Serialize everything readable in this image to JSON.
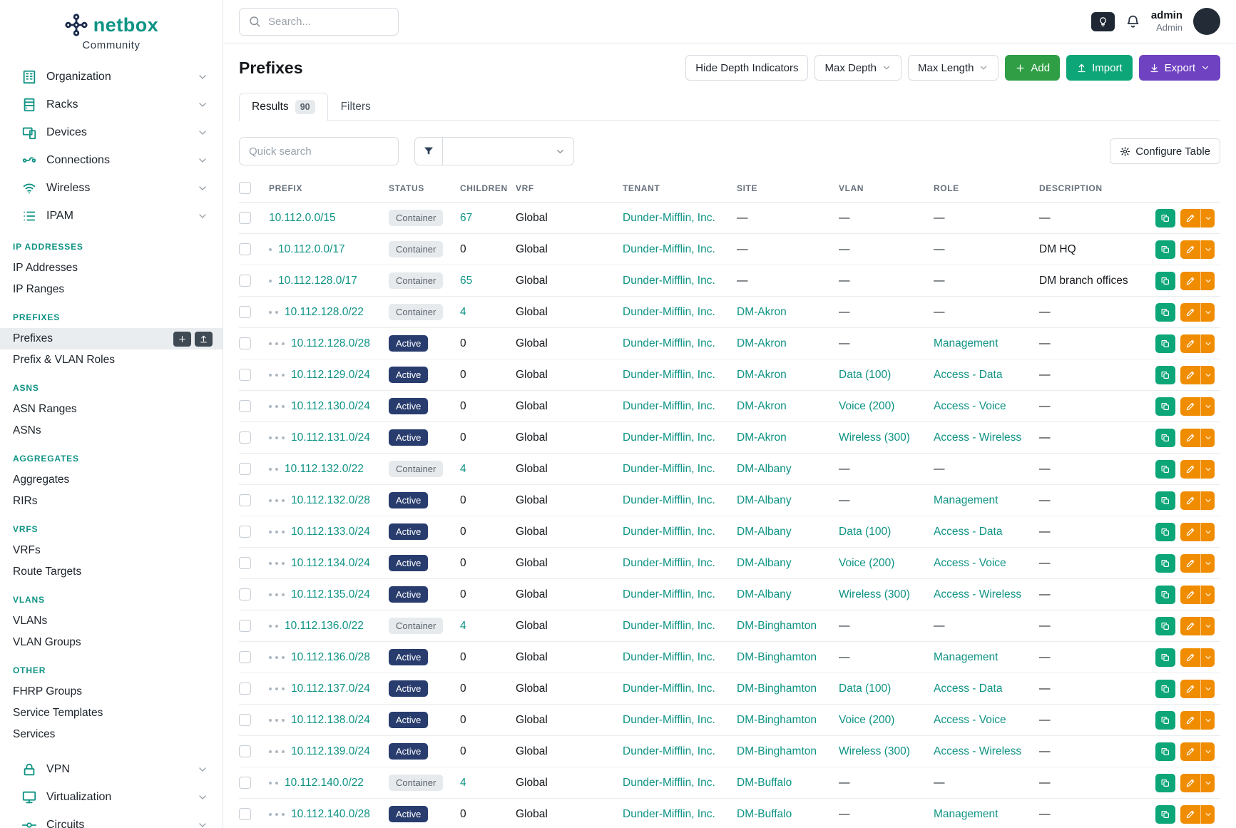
{
  "brand": {
    "name": "netbox",
    "subtitle": "Community"
  },
  "topbar": {
    "search_placeholder": "Search...",
    "user": {
      "name": "admin",
      "role": "Admin"
    }
  },
  "sidebar": {
    "top_items": [
      {
        "label": "Organization",
        "icon": "building-icon"
      },
      {
        "label": "Racks",
        "icon": "rack-icon"
      },
      {
        "label": "Devices",
        "icon": "device-icon"
      },
      {
        "label": "Connections",
        "icon": "cable-icon"
      },
      {
        "label": "Wireless",
        "icon": "wifi-icon"
      },
      {
        "label": "IPAM",
        "icon": "ipam-icon"
      }
    ],
    "sections": [
      {
        "heading": "IP ADDRESSES",
        "items": [
          "IP Addresses",
          "IP Ranges"
        ]
      },
      {
        "heading": "PREFIXES",
        "items": [
          "Prefixes",
          "Prefix & VLAN Roles"
        ]
      },
      {
        "heading": "ASNS",
        "items": [
          "ASN Ranges",
          "ASNs"
        ]
      },
      {
        "heading": "AGGREGATES",
        "items": [
          "Aggregates",
          "RIRs"
        ]
      },
      {
        "heading": "VRFS",
        "items": [
          "VRFs",
          "Route Targets"
        ]
      },
      {
        "heading": "VLANS",
        "items": [
          "VLANs",
          "VLAN Groups"
        ]
      },
      {
        "heading": "OTHER",
        "items": [
          "FHRP Groups",
          "Service Templates",
          "Services"
        ]
      }
    ],
    "active_item": "Prefixes",
    "bottom_items": [
      {
        "label": "VPN",
        "icon": "lock-icon"
      },
      {
        "label": "Virtualization",
        "icon": "monitor-icon"
      },
      {
        "label": "Circuits",
        "icon": "circuit-icon"
      }
    ]
  },
  "page": {
    "title": "Prefixes",
    "actions": {
      "hide_depth": "Hide Depth Indicators",
      "max_depth": "Max Depth",
      "max_length": "Max Length",
      "add": "Add",
      "import": "Import",
      "export": "Export"
    },
    "tabs": [
      {
        "label": "Results",
        "badge": "90"
      },
      {
        "label": "Filters"
      }
    ],
    "quick_search_placeholder": "Quick search",
    "configure_table": "Configure Table"
  },
  "table": {
    "columns": [
      "PREFIX",
      "STATUS",
      "CHILDREN",
      "VRF",
      "TENANT",
      "SITE",
      "VLAN",
      "ROLE",
      "DESCRIPTION"
    ],
    "rows": [
      {
        "depth": 0,
        "prefix": "10.112.0.0/15",
        "status": "Container",
        "children": "67",
        "vrf": "Global",
        "tenant": "Dunder-Mifflin, Inc.",
        "site": "—",
        "vlan": "—",
        "role": "—",
        "description": "—"
      },
      {
        "depth": 1,
        "prefix": "10.112.0.0/17",
        "status": "Container",
        "children": "0",
        "vrf": "Global",
        "tenant": "Dunder-Mifflin, Inc.",
        "site": "—",
        "vlan": "—",
        "role": "—",
        "description": "DM HQ"
      },
      {
        "depth": 1,
        "prefix": "10.112.128.0/17",
        "status": "Container",
        "children": "65",
        "vrf": "Global",
        "tenant": "Dunder-Mifflin, Inc.",
        "site": "—",
        "vlan": "—",
        "role": "—",
        "description": "DM branch offices"
      },
      {
        "depth": 2,
        "prefix": "10.112.128.0/22",
        "status": "Container",
        "children": "4",
        "vrf": "Global",
        "tenant": "Dunder-Mifflin, Inc.",
        "site": "DM-Akron",
        "vlan": "—",
        "role": "—",
        "description": "—"
      },
      {
        "depth": 3,
        "prefix": "10.112.128.0/28",
        "status": "Active",
        "children": "0",
        "vrf": "Global",
        "tenant": "Dunder-Mifflin, Inc.",
        "site": "DM-Akron",
        "vlan": "—",
        "role": "Management",
        "description": "—"
      },
      {
        "depth": 3,
        "prefix": "10.112.129.0/24",
        "status": "Active",
        "children": "0",
        "vrf": "Global",
        "tenant": "Dunder-Mifflin, Inc.",
        "site": "DM-Akron",
        "vlan": "Data (100)",
        "role": "Access - Data",
        "description": "—"
      },
      {
        "depth": 3,
        "prefix": "10.112.130.0/24",
        "status": "Active",
        "children": "0",
        "vrf": "Global",
        "tenant": "Dunder-Mifflin, Inc.",
        "site": "DM-Akron",
        "vlan": "Voice (200)",
        "role": "Access - Voice",
        "description": "—"
      },
      {
        "depth": 3,
        "prefix": "10.112.131.0/24",
        "status": "Active",
        "children": "0",
        "vrf": "Global",
        "tenant": "Dunder-Mifflin, Inc.",
        "site": "DM-Akron",
        "vlan": "Wireless (300)",
        "role": "Access - Wireless",
        "description": "—"
      },
      {
        "depth": 2,
        "prefix": "10.112.132.0/22",
        "status": "Container",
        "children": "4",
        "vrf": "Global",
        "tenant": "Dunder-Mifflin, Inc.",
        "site": "DM-Albany",
        "vlan": "—",
        "role": "—",
        "description": "—"
      },
      {
        "depth": 3,
        "prefix": "10.112.132.0/28",
        "status": "Active",
        "children": "0",
        "vrf": "Global",
        "tenant": "Dunder-Mifflin, Inc.",
        "site": "DM-Albany",
        "vlan": "—",
        "role": "Management",
        "description": "—"
      },
      {
        "depth": 3,
        "prefix": "10.112.133.0/24",
        "status": "Active",
        "children": "0",
        "vrf": "Global",
        "tenant": "Dunder-Mifflin, Inc.",
        "site": "DM-Albany",
        "vlan": "Data (100)",
        "role": "Access - Data",
        "description": "—"
      },
      {
        "depth": 3,
        "prefix": "10.112.134.0/24",
        "status": "Active",
        "children": "0",
        "vrf": "Global",
        "tenant": "Dunder-Mifflin, Inc.",
        "site": "DM-Albany",
        "vlan": "Voice (200)",
        "role": "Access - Voice",
        "description": "—"
      },
      {
        "depth": 3,
        "prefix": "10.112.135.0/24",
        "status": "Active",
        "children": "0",
        "vrf": "Global",
        "tenant": "Dunder-Mifflin, Inc.",
        "site": "DM-Albany",
        "vlan": "Wireless (300)",
        "role": "Access - Wireless",
        "description": "—"
      },
      {
        "depth": 2,
        "prefix": "10.112.136.0/22",
        "status": "Container",
        "children": "4",
        "vrf": "Global",
        "tenant": "Dunder-Mifflin, Inc.",
        "site": "DM-Binghamton",
        "vlan": "—",
        "role": "—",
        "description": "—"
      },
      {
        "depth": 3,
        "prefix": "10.112.136.0/28",
        "status": "Active",
        "children": "0",
        "vrf": "Global",
        "tenant": "Dunder-Mifflin, Inc.",
        "site": "DM-Binghamton",
        "vlan": "—",
        "role": "Management",
        "description": "—"
      },
      {
        "depth": 3,
        "prefix": "10.112.137.0/24",
        "status": "Active",
        "children": "0",
        "vrf": "Global",
        "tenant": "Dunder-Mifflin, Inc.",
        "site": "DM-Binghamton",
        "vlan": "Data (100)",
        "role": "Access - Data",
        "description": "—"
      },
      {
        "depth": 3,
        "prefix": "10.112.138.0/24",
        "status": "Active",
        "children": "0",
        "vrf": "Global",
        "tenant": "Dunder-Mifflin, Inc.",
        "site": "DM-Binghamton",
        "vlan": "Voice (200)",
        "role": "Access - Voice",
        "description": "—"
      },
      {
        "depth": 3,
        "prefix": "10.112.139.0/24",
        "status": "Active",
        "children": "0",
        "vrf": "Global",
        "tenant": "Dunder-Mifflin, Inc.",
        "site": "DM-Binghamton",
        "vlan": "Wireless (300)",
        "role": "Access - Wireless",
        "description": "—"
      },
      {
        "depth": 2,
        "prefix": "10.112.140.0/22",
        "status": "Container",
        "children": "4",
        "vrf": "Global",
        "tenant": "Dunder-Mifflin, Inc.",
        "site": "DM-Buffalo",
        "vlan": "—",
        "role": "—",
        "description": "—"
      },
      {
        "depth": 3,
        "prefix": "10.112.140.0/28",
        "status": "Active",
        "children": "0",
        "vrf": "Global",
        "tenant": "Dunder-Mifflin, Inc.",
        "site": "DM-Buffalo",
        "vlan": "—",
        "role": "Management",
        "description": "—"
      }
    ]
  },
  "colors": {
    "accent_teal": "#0e9384",
    "status_active_bg": "#283c6e",
    "status_container_bg": "#e7eaed",
    "add_green": "#2f9e44",
    "import_teal": "#0ca678",
    "export_purple": "#6f42c1",
    "action_orange": "#f08c00"
  }
}
